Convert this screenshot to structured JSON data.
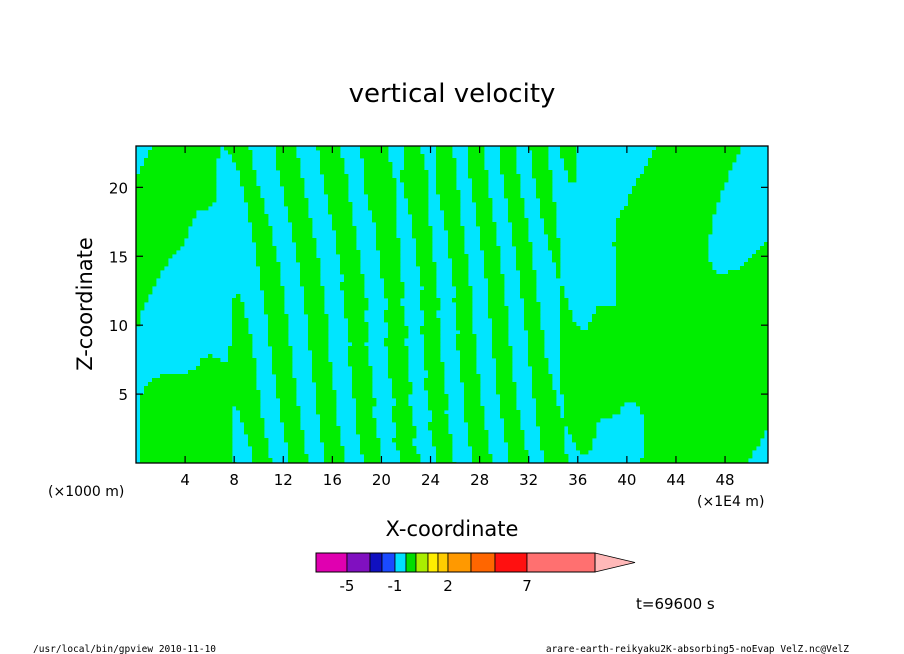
{
  "chart_data": {
    "type": "heatmap",
    "title": "vertical velocity",
    "xlabel": "X-coordinate",
    "ylabel": "Z-coordinate",
    "x_unit": "(×1E4 m)",
    "y_unit": "(×1000 m)",
    "xlim": [
      0,
      51.5
    ],
    "ylim": [
      0,
      23
    ],
    "x_ticks": [
      4,
      8,
      12,
      16,
      20,
      24,
      28,
      32,
      36,
      40,
      44,
      48
    ],
    "y_ticks": [
      5,
      10,
      15,
      20
    ],
    "time_label": "t=69600 s",
    "colorbar": {
      "tick_labels": [
        {
          "label": "-5",
          "value": -5
        },
        {
          "label": "-1",
          "value": -1
        },
        {
          "label": "2",
          "value": 2
        },
        {
          "label": "7",
          "value": 7
        }
      ],
      "levels": [
        -7,
        -5,
        -3,
        -2,
        -1,
        -0.5,
        0,
        0.5,
        1,
        2,
        3,
        5,
        7,
        10,
        15
      ],
      "colors": [
        "#e000b0",
        "#8010c0",
        "#1010c0",
        "#1a4aff",
        "#00e0ff",
        "#00dd00",
        "#aaee00",
        "#ffee00",
        "#ffcc00",
        "#ff9900",
        "#ff6600",
        "#ff1010",
        "#ff7070",
        "#ffb8b8"
      ],
      "extend": "max"
    }
  },
  "palette": {
    "negative_fill": "#00e5ff",
    "positive_fill": "#00ee00",
    "contour_line": "#000000"
  },
  "footer": {
    "left": "/usr/local/bin/gpview  2010-11-10",
    "right": "arare-earth-reikyaku2K-absorbing5-noEvap_VelZ.nc@VelZ"
  }
}
